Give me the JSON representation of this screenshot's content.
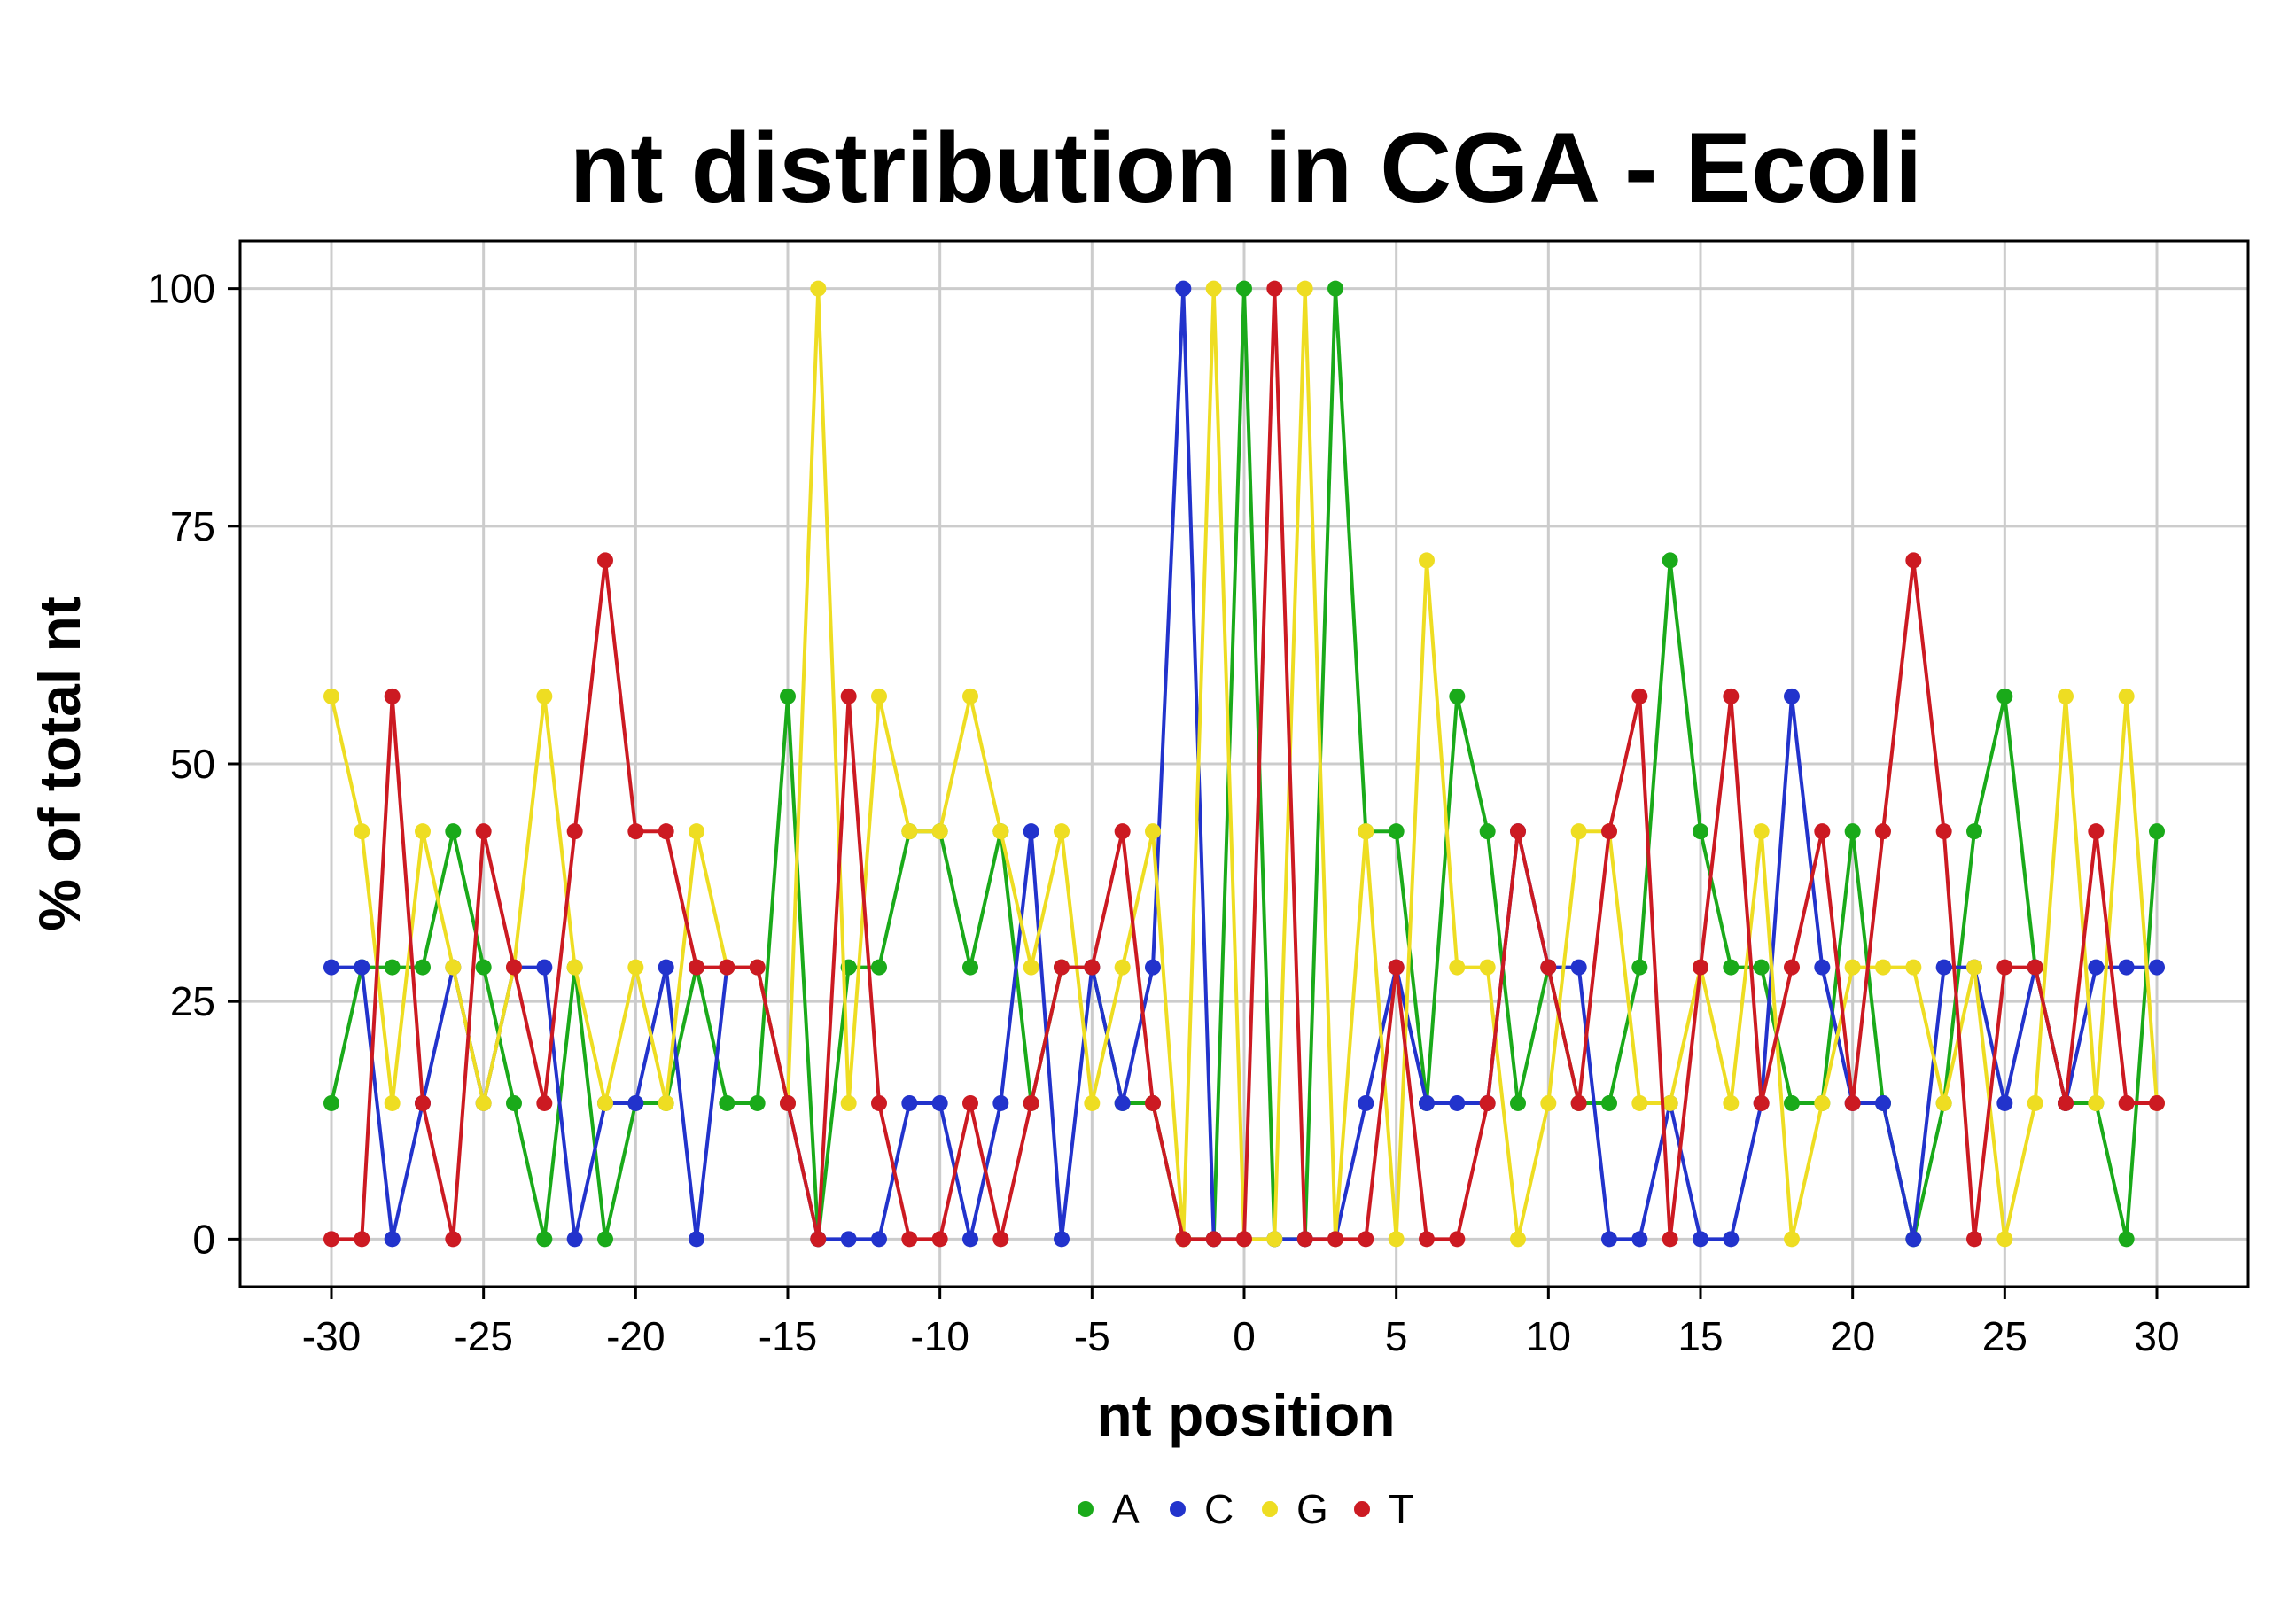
{
  "chart_data": {
    "type": "line",
    "title": "nt distribution in CGA - Ecoli",
    "xlabel": "nt position",
    "ylabel": "% of total nt",
    "xlim": [
      -33,
      33
    ],
    "ylim": [
      -5,
      105
    ],
    "xticks": [
      -30,
      -25,
      -20,
      -15,
      -10,
      -5,
      0,
      5,
      10,
      15,
      20,
      25,
      30
    ],
    "yticks": [
      0,
      25,
      50,
      75,
      100
    ],
    "grid": true,
    "legend": "bottom",
    "x": [
      -30,
      -29,
      -28,
      -27,
      -26,
      -25,
      -24,
      -23,
      -22,
      -21,
      -20,
      -19,
      -18,
      -17,
      -16,
      -15,
      -14,
      -13,
      -12,
      -11,
      -10,
      -9,
      -8,
      -7,
      -6,
      -5,
      -4,
      -3,
      -2,
      -1,
      0,
      1,
      2,
      3,
      4,
      5,
      6,
      7,
      8,
      9,
      10,
      11,
      12,
      13,
      14,
      15,
      16,
      17,
      18,
      19,
      20,
      21,
      22,
      23,
      24,
      25,
      26,
      27,
      28,
      29,
      30
    ],
    "series": [
      {
        "name": "A",
        "color": "#1aaa1a",
        "values": [
          14.3,
          28.6,
          28.6,
          28.6,
          42.9,
          28.6,
          14.3,
          0,
          28.6,
          0,
          14.3,
          14.3,
          28.6,
          14.3,
          14.3,
          57.1,
          0,
          28.6,
          28.6,
          42.9,
          42.9,
          28.6,
          42.9,
          14.3,
          28.6,
          28.6,
          14.3,
          14.3,
          0,
          0,
          100,
          0,
          0,
          100,
          42.9,
          42.9,
          14.3,
          57.1,
          42.9,
          14.3,
          28.6,
          14.3,
          14.3,
          28.6,
          71.4,
          42.9,
          28.6,
          28.6,
          14.3,
          14.3,
          42.9,
          14.3,
          0,
          14.3,
          42.9,
          57.1,
          28.6,
          14.3,
          14.3,
          0,
          42.9
        ]
      },
      {
        "name": "C",
        "color": "#2233cc",
        "values": [
          28.6,
          28.6,
          0,
          14.3,
          28.6,
          14.3,
          28.6,
          28.6,
          0,
          14.3,
          14.3,
          28.6,
          0,
          28.6,
          28.6,
          14.3,
          0,
          0,
          0,
          14.3,
          14.3,
          0,
          14.3,
          42.9,
          0,
          28.6,
          14.3,
          28.6,
          100,
          0,
          0,
          0,
          0,
          0,
          14.3,
          28.6,
          14.3,
          14.3,
          14.3,
          42.9,
          28.6,
          28.6,
          0,
          0,
          14.3,
          0,
          0,
          14.3,
          57.1,
          28.6,
          14.3,
          14.3,
          0,
          28.6,
          28.6,
          14.3,
          28.6,
          14.3,
          28.6,
          28.6,
          28.6
        ]
      },
      {
        "name": "G",
        "color": "#eedd22",
        "values": [
          57.1,
          42.9,
          14.3,
          42.9,
          28.6,
          14.3,
          28.6,
          57.1,
          28.6,
          14.3,
          28.6,
          14.3,
          42.9,
          28.6,
          28.6,
          14.3,
          100,
          14.3,
          57.1,
          42.9,
          42.9,
          57.1,
          42.9,
          28.6,
          42.9,
          14.3,
          28.6,
          42.9,
          0,
          100,
          0,
          0,
          100,
          0,
          42.9,
          0,
          71.4,
          28.6,
          28.6,
          0,
          14.3,
          42.9,
          42.9,
          14.3,
          14.3,
          28.6,
          14.3,
          42.9,
          0,
          14.3,
          28.6,
          28.6,
          28.6,
          14.3,
          28.6,
          0,
          14.3,
          57.1,
          14.3,
          57.1,
          14.3
        ]
      },
      {
        "name": "T",
        "color": "#cc1a22",
        "values": [
          0,
          0,
          57.1,
          14.3,
          0,
          42.9,
          28.6,
          14.3,
          42.9,
          71.4,
          42.9,
          42.9,
          28.6,
          28.6,
          28.6,
          14.3,
          0,
          57.1,
          14.3,
          0,
          0,
          14.3,
          0,
          14.3,
          28.6,
          28.6,
          42.9,
          14.3,
          0,
          0,
          0,
          100,
          0,
          0,
          0,
          28.6,
          0,
          0,
          14.3,
          42.9,
          28.6,
          14.3,
          42.9,
          57.1,
          0,
          28.6,
          57.1,
          14.3,
          28.6,
          42.9,
          14.3,
          42.9,
          71.4,
          42.9,
          0,
          28.6,
          28.6,
          14.3,
          42.9,
          14.3,
          14.3
        ]
      }
    ]
  }
}
